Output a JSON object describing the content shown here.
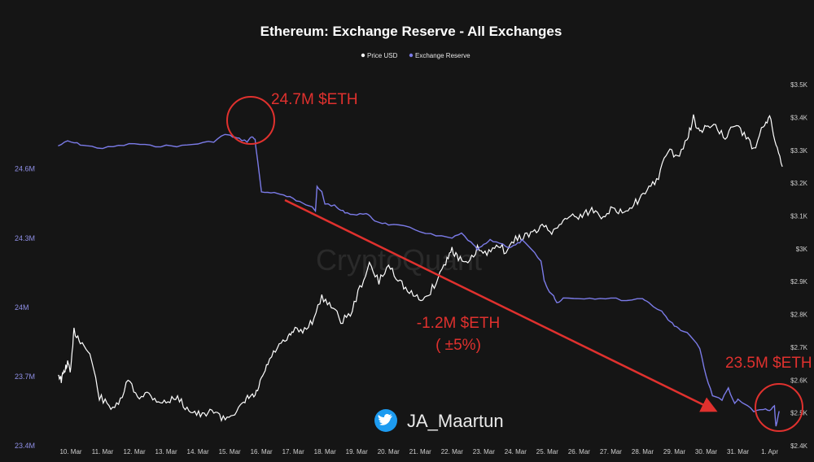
{
  "chart_data": {
    "type": "line",
    "title": "Ethereum: Exchange Reserve - All Exchanges",
    "legend": {
      "placement": "top-center",
      "entries": [
        "Price USD",
        "Exchange Reserve"
      ]
    },
    "x_tick_labels": [
      "10. Mar",
      "11. Mar",
      "12. Mar",
      "13. Mar",
      "14. Mar",
      "15. Mar",
      "16. Mar",
      "17. Mar",
      "18. Mar",
      "19. Mar",
      "20. Mar",
      "21. Mar",
      "22. Mar",
      "23. Mar",
      "24. Mar",
      "25. Mar",
      "26. Mar",
      "27. Mar",
      "28. Mar",
      "29. Mar",
      "30. Mar",
      "31. Mar",
      "1. Apr"
    ],
    "left_axis": {
      "ticks": [
        "23.4M",
        "23.7M",
        "24M",
        "24.3M",
        "24.6M"
      ],
      "range": [
        23.4,
        24.98
      ]
    },
    "right_axis": {
      "ticks": [
        "$2.4K",
        "$2.5K",
        "$2.6K",
        "$2.7K",
        "$2.8K",
        "$2.9K",
        "$3K",
        "$3.1K",
        "$3.2K",
        "$3.3K",
        "$3.4K",
        "$3.5K"
      ],
      "range": [
        2400,
        3510
      ]
    },
    "grid": false,
    "series": [
      {
        "name": "Exchange Reserve",
        "color": "#7b7be8",
        "x": [
          9.6,
          9.9,
          10.2,
          10.5,
          11.0,
          11.5,
          12.0,
          12.5,
          13.0,
          13.5,
          14.0,
          14.5,
          14.85,
          15.1,
          15.3,
          15.55,
          15.7,
          15.8,
          15.82,
          16.0,
          16.3,
          16.6,
          16.9,
          17.0,
          17.3,
          17.6,
          17.7,
          17.75,
          17.9,
          18.0,
          18.3,
          18.5,
          18.7,
          19.0,
          19.3,
          19.5,
          19.7,
          20.0,
          20.5,
          21.0,
          21.5,
          22.0,
          22.3,
          22.6,
          22.8,
          23.0,
          23.2,
          23.5,
          23.8,
          24.0,
          24.2,
          24.5,
          24.8,
          24.9,
          25.0,
          25.2,
          25.3,
          25.5,
          26.0,
          26.5,
          27.0,
          27.5,
          28.0,
          28.2,
          28.6,
          28.8,
          29.0,
          29.2,
          29.5,
          29.8,
          30.0,
          30.2,
          30.5,
          30.7,
          30.9,
          31.0,
          31.2,
          31.5,
          31.8,
          32.0,
          32.15,
          32.2,
          32.3
        ],
        "values": [
          24.7,
          24.72,
          24.71,
          24.7,
          24.69,
          24.7,
          24.71,
          24.7,
          24.7,
          24.7,
          24.71,
          24.72,
          24.75,
          24.74,
          24.73,
          24.72,
          24.74,
          24.73,
          24.7,
          24.5,
          24.5,
          24.49,
          24.48,
          24.47,
          24.45,
          24.44,
          24.42,
          24.52,
          24.5,
          24.45,
          24.44,
          24.42,
          24.41,
          24.4,
          24.41,
          24.38,
          24.37,
          24.36,
          24.35,
          24.33,
          24.31,
          24.3,
          24.32,
          24.28,
          24.25,
          24.27,
          24.29,
          24.28,
          24.26,
          24.27,
          24.29,
          24.25,
          24.2,
          24.12,
          24.08,
          24.05,
          24.02,
          24.04,
          24.04,
          24.04,
          24.04,
          24.03,
          24.04,
          24.02,
          23.98,
          23.95,
          23.92,
          23.9,
          23.88,
          23.82,
          23.7,
          23.62,
          23.6,
          23.65,
          23.58,
          23.6,
          23.58,
          23.55,
          23.56,
          23.55,
          23.57,
          23.48,
          23.55
        ]
      },
      {
        "name": "Price USD",
        "color": "#ffffff",
        "x": [
          9.6,
          9.7,
          9.8,
          9.9,
          10.0,
          10.1,
          10.3,
          10.6,
          10.9,
          11.2,
          11.5,
          11.8,
          12.1,
          12.4,
          12.7,
          13.0,
          13.3,
          13.6,
          13.9,
          14.2,
          14.5,
          14.8,
          15.1,
          15.4,
          15.6,
          15.8,
          16.0,
          16.2,
          16.5,
          16.8,
          17.0,
          17.3,
          17.6,
          17.9,
          18.2,
          18.5,
          18.8,
          19.1,
          19.4,
          19.7,
          20.0,
          20.3,
          20.6,
          20.9,
          21.2,
          21.5,
          21.8,
          22.0,
          22.2,
          22.5,
          22.8,
          23.1,
          23.4,
          23.7,
          24.0,
          24.3,
          24.6,
          24.9,
          25.2,
          25.5,
          25.8,
          26.1,
          26.4,
          26.7,
          27.0,
          27.3,
          27.6,
          27.9,
          28.2,
          28.5,
          28.8,
          29.1,
          29.4,
          29.6,
          29.8,
          30.0,
          30.3,
          30.6,
          30.9,
          31.2,
          31.5,
          31.8,
          32.0,
          32.2,
          32.4
        ],
        "values": [
          2.62,
          2.6,
          2.63,
          2.65,
          2.63,
          2.75,
          2.72,
          2.68,
          2.55,
          2.52,
          2.52,
          2.6,
          2.55,
          2.56,
          2.54,
          2.53,
          2.55,
          2.52,
          2.5,
          2.49,
          2.51,
          2.48,
          2.5,
          2.52,
          2.55,
          2.55,
          2.6,
          2.65,
          2.7,
          2.72,
          2.75,
          2.75,
          2.78,
          2.85,
          2.83,
          2.78,
          2.8,
          2.88,
          2.95,
          2.9,
          2.95,
          2.91,
          2.87,
          2.85,
          2.85,
          2.9,
          2.96,
          3.0,
          2.97,
          2.95,
          3.0,
          2.98,
          3.02,
          2.99,
          3.03,
          3.04,
          3.05,
          3.07,
          3.05,
          3.09,
          3.1,
          3.1,
          3.12,
          3.1,
          3.12,
          3.11,
          3.13,
          3.15,
          3.18,
          3.22,
          3.3,
          3.28,
          3.33,
          3.4,
          3.35,
          3.37,
          3.38,
          3.33,
          3.38,
          3.35,
          3.3,
          3.38,
          3.4,
          3.32,
          3.25
        ]
      }
    ],
    "annotations": {
      "top": "24.7M $ETH",
      "middle_line1": "-1.2M $ETH",
      "middle_line2": "( ±5%)",
      "right": "23.5M $ETH"
    },
    "watermark": "CryptoQuant",
    "twitter_handle": "JA_Maartun"
  }
}
